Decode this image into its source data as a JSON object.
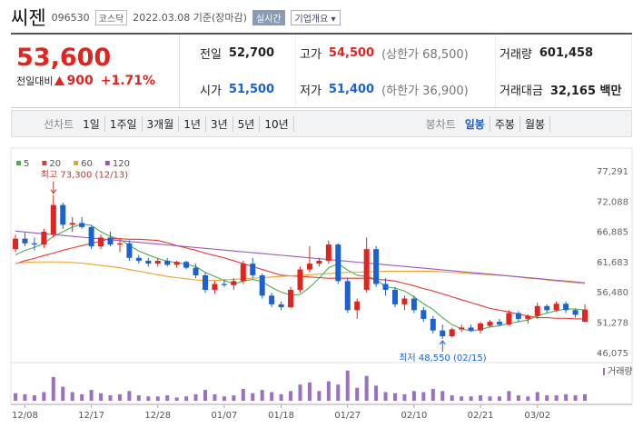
{
  "header": {
    "name": "씨젠",
    "code": "096530",
    "market": "코스닥",
    "date": "2022.03.08 기준(장마감)",
    "realtime": "실시간",
    "company": "기업개요"
  },
  "quote": {
    "price": "53,600",
    "change_label": "전일대비",
    "change": "900",
    "change_pct": "+1.71%",
    "rows": [
      [
        {
          "label": "전일",
          "value": "52,700",
          "color": "#222222"
        },
        {
          "label": "고가",
          "value": "54,500",
          "note": "(상한가 68,500)",
          "color": "#e0241f"
        },
        {
          "label": "거래량",
          "value": "601,458",
          "color": "#222222"
        }
      ],
      [
        {
          "label": "시가",
          "value": "51,500",
          "color": "#1b61d1"
        },
        {
          "label": "저가",
          "value": "51,400",
          "note": "(하한가 36,900)",
          "color": "#1b61d1"
        },
        {
          "label": "거래대금",
          "value": "32,165 백만",
          "color": "#222222"
        }
      ]
    ]
  },
  "tabs": {
    "line_label": "선차트",
    "line": [
      "1일",
      "1주일",
      "3개월",
      "1년",
      "3년",
      "5년",
      "10년"
    ],
    "candle_label": "봉차트",
    "candle": [
      "일봉",
      "주봉",
      "월봉"
    ]
  },
  "chart_data": {
    "type": "candlestick",
    "up_color": "#e0241f",
    "down_color": "#1b61d1",
    "categories": [
      null,
      "12/08",
      null,
      null,
      null,
      null,
      null,
      null,
      "12/17",
      null,
      null,
      null,
      null,
      null,
      null,
      "12/28",
      null,
      null,
      null,
      null,
      null,
      null,
      "01/07",
      null,
      null,
      null,
      null,
      null,
      "01/18",
      null,
      null,
      null,
      null,
      null,
      null,
      "01/27",
      null,
      null,
      null,
      null,
      null,
      null,
      "02/10",
      null,
      null,
      null,
      null,
      null,
      null,
      "02/21",
      null,
      null,
      null,
      null,
      null,
      "03/02",
      null,
      null,
      null,
      null,
      null
    ],
    "open": [
      64000,
      65800,
      65000,
      64800,
      66500,
      71600,
      68200,
      68500,
      67800,
      64500,
      66000,
      64800,
      65000,
      62500,
      62000,
      61500,
      62000,
      61300,
      61800,
      60800,
      59500,
      57000,
      58000,
      57800,
      58500,
      61500,
      59500,
      56000,
      54500,
      54000,
      57000,
      60500,
      61500,
      62000,
      64800,
      58500,
      53500,
      57000,
      64000,
      58000,
      57000,
      54500,
      55500,
      53500,
      52000,
      50000,
      49000,
      50200,
      50500,
      50000,
      50800,
      51500,
      51000,
      53000,
      52000,
      52500,
      54200,
      53500,
      54600,
      53500,
      51500
    ],
    "high": [
      66500,
      66800,
      66000,
      67500,
      73300,
      72000,
      69500,
      69500,
      68000,
      66500,
      67000,
      65500,
      65500,
      63000,
      62500,
      62500,
      62500,
      62000,
      62000,
      61500,
      60000,
      58500,
      58800,
      59000,
      62000,
      62500,
      59800,
      56500,
      55000,
      57500,
      61000,
      64500,
      62500,
      65500,
      65000,
      59000,
      55500,
      66000,
      64500,
      59000,
      57500,
      56000,
      56000,
      54000,
      52500,
      51000,
      50500,
      51000,
      51000,
      51500,
      51800,
      52000,
      53500,
      53300,
      52800,
      54800,
      54500,
      55000,
      55000,
      53800,
      54500
    ],
    "low": [
      63500,
      64500,
      63800,
      64200,
      66000,
      67500,
      67000,
      67500,
      64000,
      64000,
      64500,
      63500,
      62000,
      61500,
      61000,
      61000,
      61000,
      60800,
      60500,
      59000,
      56500,
      56300,
      57500,
      57000,
      58000,
      59000,
      55500,
      54000,
      53500,
      53800,
      56500,
      60000,
      61000,
      61500,
      58000,
      53000,
      52000,
      56500,
      57500,
      56000,
      54000,
      53500,
      53000,
      51500,
      49500,
      48550,
      48800,
      49800,
      49800,
      49500,
      50500,
      50800,
      50800,
      51500,
      51200,
      52000,
      53000,
      53200,
      53000,
      52200,
      51400
    ],
    "close": [
      65800,
      65000,
      64800,
      67000,
      71600,
      68200,
      68500,
      67800,
      64500,
      66000,
      64800,
      65000,
      62500,
      62000,
      61500,
      62000,
      61300,
      61800,
      60800,
      59500,
      57000,
      58000,
      57800,
      58500,
      61500,
      59500,
      56000,
      54500,
      54000,
      57000,
      60500,
      61500,
      62000,
      64800,
      58500,
      53500,
      55000,
      64000,
      58000,
      57000,
      54500,
      55500,
      53500,
      52000,
      50000,
      49000,
      50200,
      50500,
      50000,
      51200,
      51500,
      51000,
      53000,
      52000,
      52500,
      54200,
      53500,
      54600,
      53500,
      52700,
      53600
    ],
    "volume": [
      700000,
      600000,
      500000,
      800000,
      2200000,
      1300000,
      800000,
      600000,
      1000000,
      700000,
      500000,
      600000,
      900000,
      500000,
      400000,
      400000,
      500000,
      300000,
      400000,
      600000,
      1000000,
      600000,
      400000,
      500000,
      1100000,
      700000,
      1000000,
      800000,
      600000,
      900000,
      1500000,
      1700000,
      900000,
      1800000,
      1500000,
      2800000,
      1200000,
      2300000,
      1400000,
      800000,
      700000,
      600000,
      900000,
      800000,
      1100000,
      900000,
      500000,
      400000,
      400000,
      500000,
      400000,
      400000,
      900000,
      500000,
      400000,
      800000,
      500000,
      500000,
      600000,
      500000,
      601458
    ],
    "volume_color": "#9a6fc4",
    "volume_label": "거래량",
    "volume_ylim": [
      0,
      3200000
    ],
    "series": [
      {
        "name": "5",
        "color": "#4caf50",
        "values": [
          63000,
          63800,
          64300,
          65000,
          66200,
          67000,
          67800,
          68300,
          68100,
          67000,
          66200,
          65700,
          64600,
          63700,
          63000,
          62400,
          61900,
          61700,
          61400,
          61000,
          60000,
          59300,
          58600,
          58000,
          58500,
          58800,
          58400,
          57400,
          56600,
          56100,
          56200,
          57400,
          59000,
          60800,
          61500,
          60400,
          59500,
          59300,
          58800,
          57500,
          57300,
          56800,
          55800,
          54600,
          53600,
          52200,
          51000,
          50300,
          49900,
          50200,
          50600,
          50800,
          51200,
          51500,
          51800,
          52500,
          53000,
          53400,
          53700,
          53700,
          53500
        ]
      },
      {
        "name": "20",
        "color": "#e53935",
        "values": [
          61500,
          62000,
          62400,
          62900,
          63300,
          63800,
          64200,
          64600,
          65000,
          65400,
          65800,
          65800,
          65700,
          65700,
          65600,
          65500,
          65100,
          64600,
          64200,
          63800,
          63300,
          62900,
          62500,
          62000,
          61500,
          61000,
          60500,
          60000,
          59500,
          59400,
          59300,
          59200,
          59100,
          59000,
          59000,
          59000,
          59000,
          59000,
          58800,
          58700,
          58500,
          58100,
          57700,
          57200,
          56800,
          56300,
          55800,
          55300,
          54800,
          54300,
          53800,
          53500,
          53200,
          52800,
          52500,
          52200,
          52200,
          52100,
          52100,
          52000,
          52000
        ]
      },
      {
        "name": "60",
        "color": "#f0a030",
        "values": [
          61600,
          61700,
          61800,
          61800,
          61800,
          61800,
          61700,
          61600,
          61400,
          61200,
          61000,
          60800,
          60500,
          60200,
          59900,
          59600,
          59300,
          59100,
          58900,
          58700,
          58600,
          58600,
          58700,
          58800,
          58900,
          59000,
          59100,
          59200,
          59300,
          59400,
          59500,
          59600,
          59700,
          59800,
          59900,
          60000,
          60000,
          60100,
          60100,
          60200,
          60200,
          60200,
          60200,
          60200,
          60200,
          60100,
          60000,
          59900,
          59800,
          59700,
          59600,
          59500,
          59400,
          59200,
          59000,
          58900,
          58700,
          58500,
          58400,
          58200,
          58100
        ]
      },
      {
        "name": "120",
        "color": "#9b59b6",
        "values": [
          67100,
          66950,
          66800,
          66650,
          66510,
          66360,
          66210,
          66060,
          65910,
          65770,
          65620,
          65470,
          65320,
          65170,
          65020,
          64880,
          64730,
          64580,
          64430,
          64280,
          64130,
          63990,
          63840,
          63690,
          63540,
          63390,
          63250,
          63100,
          62950,
          62800,
          62650,
          62500,
          62360,
          62210,
          62060,
          61910,
          61760,
          61610,
          61470,
          61320,
          61170,
          61020,
          60870,
          60730,
          60580,
          60430,
          60280,
          60130,
          59980,
          59840,
          59690,
          59540,
          59390,
          59240,
          59090,
          58950,
          58800,
          58650,
          58500,
          58360,
          58200
        ]
      }
    ],
    "ylim": [
      45100,
      79200
    ],
    "yticks": [
      {
        "value": 46075,
        "label": "46,075"
      },
      {
        "value": 51278,
        "label": "51,278"
      },
      {
        "value": 56480,
        "label": "56,480"
      },
      {
        "value": 61683,
        "label": "61,683"
      },
      {
        "value": 66885,
        "label": "66,885"
      },
      {
        "value": 72088,
        "label": "72,088"
      },
      {
        "value": 77291,
        "label": "77,291"
      }
    ],
    "grid": false,
    "annotations": [
      {
        "text": "최고 73,300 (12/13)"
      },
      {
        "text": "최저 48,550 (02/15)"
      }
    ]
  }
}
